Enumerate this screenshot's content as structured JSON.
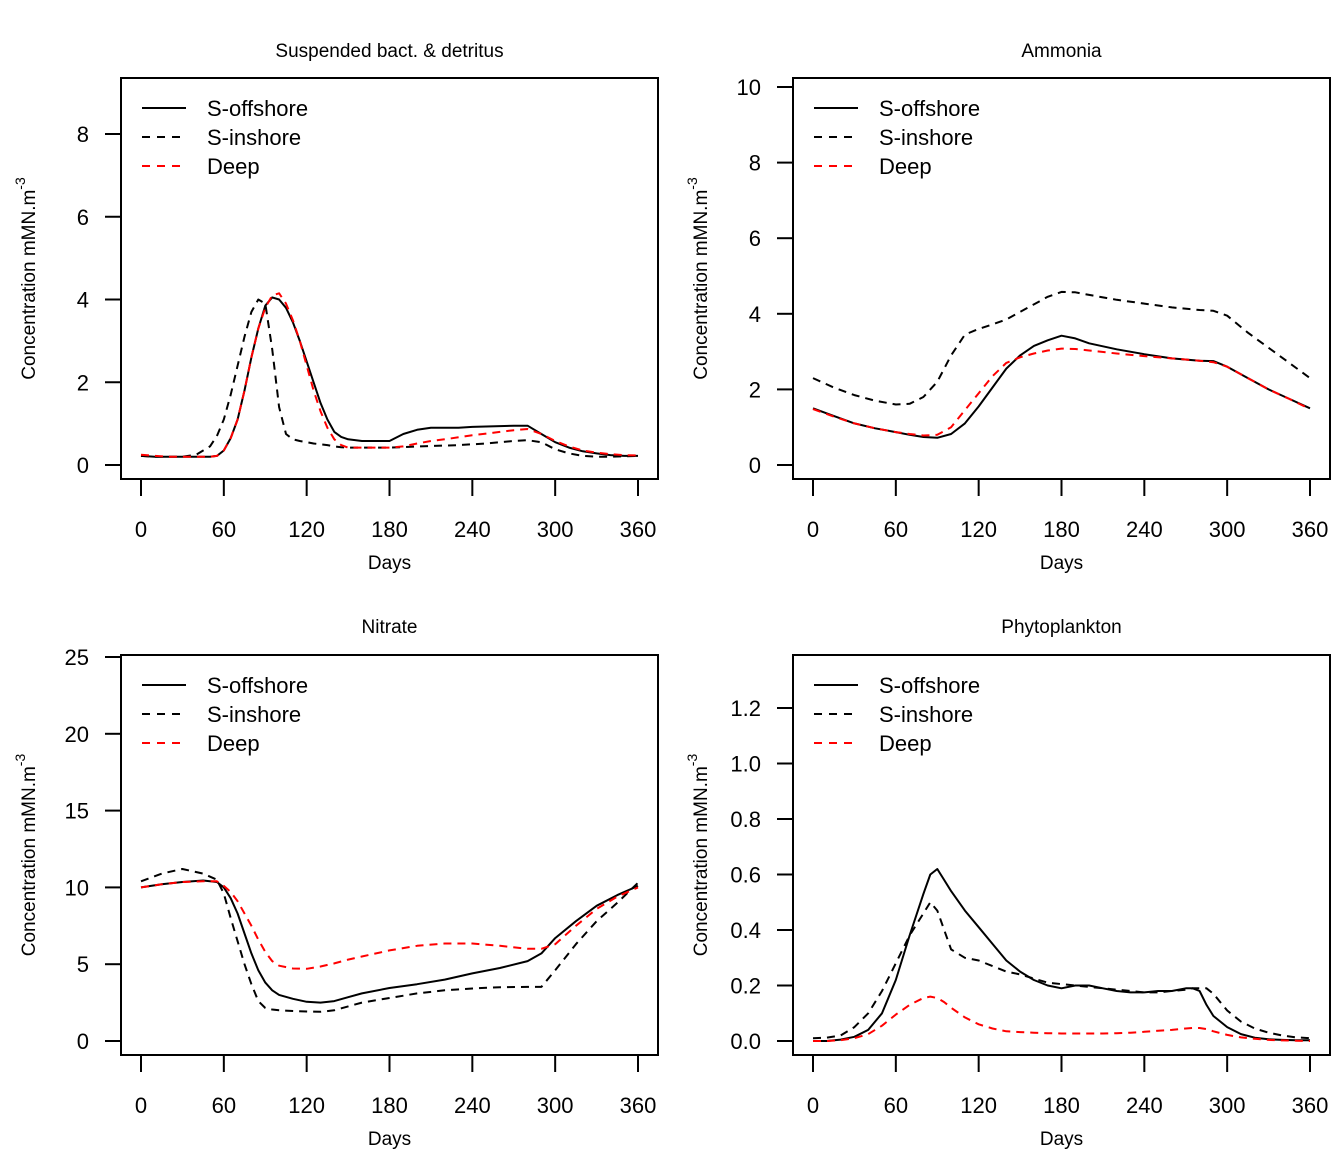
{
  "figure": {
    "legend_labels": [
      "S-offshore",
      "S-inshore",
      "Deep"
    ]
  },
  "chart_data": [
    {
      "type": "line",
      "title": "Suspended bact. & detritus",
      "xlabel": "Days",
      "ylabel": "Concentration mMN.m",
      "ylabel_superscript": "-3",
      "xlim": [
        0,
        360
      ],
      "ylim": [
        0,
        8
      ],
      "xticks": [
        0,
        60,
        120,
        180,
        240,
        300,
        360
      ],
      "yticks": [
        0,
        2,
        4,
        6,
        8
      ],
      "grid": false,
      "legend_position": "top-left",
      "x": [
        0,
        10,
        20,
        30,
        40,
        50,
        55,
        60,
        65,
        70,
        75,
        80,
        85,
        90,
        95,
        100,
        105,
        110,
        115,
        120,
        125,
        130,
        135,
        140,
        145,
        150,
        160,
        170,
        180,
        190,
        200,
        210,
        220,
        230,
        240,
        250,
        260,
        270,
        280,
        290,
        300,
        310,
        320,
        330,
        340,
        350,
        360
      ],
      "series": [
        {
          "name": "S-offshore",
          "color": "#000000",
          "dash": "solid",
          "values": [
            0.22,
            0.2,
            0.2,
            0.2,
            0.2,
            0.2,
            0.22,
            0.35,
            0.65,
            1.1,
            1.8,
            2.6,
            3.3,
            3.85,
            4.05,
            4.0,
            3.8,
            3.45,
            3.0,
            2.5,
            2.0,
            1.5,
            1.1,
            0.8,
            0.68,
            0.62,
            0.58,
            0.58,
            0.58,
            0.75,
            0.85,
            0.9,
            0.9,
            0.9,
            0.92,
            0.93,
            0.94,
            0.95,
            0.95,
            0.75,
            0.55,
            0.42,
            0.33,
            0.28,
            0.24,
            0.22,
            0.22
          ]
        },
        {
          "name": "S-inshore",
          "color": "#000000",
          "dash": "dashed",
          "values": [
            0.22,
            0.2,
            0.2,
            0.2,
            0.25,
            0.45,
            0.7,
            1.1,
            1.7,
            2.4,
            3.1,
            3.7,
            4.0,
            3.9,
            2.8,
            1.4,
            0.75,
            0.62,
            0.58,
            0.55,
            0.52,
            0.5,
            0.48,
            0.45,
            0.43,
            0.42,
            0.42,
            0.42,
            0.42,
            0.43,
            0.45,
            0.46,
            0.47,
            0.48,
            0.5,
            0.52,
            0.55,
            0.58,
            0.6,
            0.55,
            0.38,
            0.28,
            0.22,
            0.2,
            0.2,
            0.21,
            0.22
          ]
        },
        {
          "name": "Deep",
          "color": "#ff0000",
          "dash": "dashed",
          "values": [
            0.25,
            0.22,
            0.2,
            0.2,
            0.2,
            0.2,
            0.22,
            0.35,
            0.65,
            1.1,
            1.8,
            2.6,
            3.3,
            3.8,
            4.1,
            4.15,
            3.9,
            3.5,
            3.0,
            2.4,
            1.8,
            1.3,
            0.9,
            0.62,
            0.48,
            0.42,
            0.42,
            0.42,
            0.42,
            0.45,
            0.52,
            0.58,
            0.62,
            0.67,
            0.72,
            0.76,
            0.8,
            0.84,
            0.87,
            0.75,
            0.58,
            0.45,
            0.35,
            0.3,
            0.26,
            0.24,
            0.23
          ]
        }
      ]
    },
    {
      "type": "line",
      "title": "Ammonia",
      "xlabel": "Days",
      "ylabel": "Concentration mMN.m",
      "ylabel_superscript": "-3",
      "xlim": [
        0,
        360
      ],
      "ylim": [
        0,
        10
      ],
      "xticks": [
        0,
        60,
        120,
        180,
        240,
        300,
        360
      ],
      "yticks": [
        0,
        2,
        4,
        6,
        8,
        10
      ],
      "grid": false,
      "legend_position": "top-left",
      "x": [
        0,
        15,
        30,
        45,
        60,
        70,
        80,
        90,
        100,
        110,
        120,
        130,
        140,
        150,
        160,
        170,
        180,
        190,
        200,
        220,
        240,
        260,
        280,
        290,
        300,
        315,
        330,
        345,
        360
      ],
      "series": [
        {
          "name": "S-offshore",
          "color": "#000000",
          "dash": "solid",
          "values": [
            1.5,
            1.3,
            1.1,
            0.97,
            0.87,
            0.8,
            0.74,
            0.72,
            0.82,
            1.1,
            1.55,
            2.05,
            2.55,
            2.9,
            3.15,
            3.3,
            3.42,
            3.35,
            3.22,
            3.06,
            2.93,
            2.82,
            2.76,
            2.75,
            2.6,
            2.3,
            2.0,
            1.75,
            1.5
          ]
        },
        {
          "name": "S-inshore",
          "color": "#000000",
          "dash": "dashed",
          "values": [
            2.3,
            2.05,
            1.85,
            1.7,
            1.6,
            1.62,
            1.8,
            2.2,
            2.9,
            3.45,
            3.6,
            3.72,
            3.85,
            4.05,
            4.25,
            4.45,
            4.58,
            4.57,
            4.5,
            4.37,
            4.27,
            4.17,
            4.1,
            4.08,
            3.95,
            3.5,
            3.1,
            2.7,
            2.3
          ]
        },
        {
          "name": "Deep",
          "color": "#ff0000",
          "dash": "dashed",
          "values": [
            1.48,
            1.28,
            1.1,
            0.97,
            0.87,
            0.82,
            0.78,
            0.8,
            1.0,
            1.45,
            1.9,
            2.35,
            2.7,
            2.85,
            2.95,
            3.03,
            3.08,
            3.07,
            3.03,
            2.95,
            2.88,
            2.82,
            2.76,
            2.72,
            2.6,
            2.3,
            2.0,
            1.75,
            1.48
          ]
        }
      ]
    },
    {
      "type": "line",
      "title": "Nitrate",
      "xlabel": "Days",
      "ylabel": "Concentration mMN.m",
      "ylabel_superscript": "-3",
      "xlim": [
        0,
        360
      ],
      "ylim": [
        0,
        25
      ],
      "xticks": [
        0,
        60,
        120,
        180,
        240,
        300,
        360
      ],
      "yticks": [
        0,
        5,
        10,
        15,
        20,
        25
      ],
      "grid": false,
      "legend_position": "top-left",
      "x": [
        0,
        15,
        30,
        45,
        55,
        60,
        65,
        70,
        75,
        80,
        85,
        90,
        95,
        100,
        110,
        120,
        130,
        140,
        150,
        160,
        180,
        200,
        220,
        240,
        260,
        280,
        290,
        300,
        315,
        330,
        345,
        360
      ],
      "series": [
        {
          "name": "S-offshore",
          "color": "#000000",
          "dash": "solid",
          "values": [
            10.0,
            10.2,
            10.35,
            10.45,
            10.35,
            10.0,
            9.3,
            8.3,
            7.0,
            5.7,
            4.6,
            3.8,
            3.3,
            3.0,
            2.75,
            2.55,
            2.5,
            2.6,
            2.85,
            3.1,
            3.45,
            3.7,
            4.0,
            4.4,
            4.75,
            5.2,
            5.7,
            6.7,
            7.8,
            8.8,
            9.5,
            10.1
          ]
        },
        {
          "name": "S-inshore",
          "color": "#000000",
          "dash": "dashed",
          "values": [
            10.4,
            10.9,
            11.2,
            10.9,
            10.5,
            9.6,
            8.0,
            6.5,
            5.0,
            3.7,
            2.6,
            2.15,
            2.05,
            2.0,
            1.95,
            1.92,
            1.9,
            2.0,
            2.25,
            2.5,
            2.8,
            3.1,
            3.3,
            3.42,
            3.5,
            3.52,
            3.52,
            4.6,
            6.3,
            7.8,
            9.0,
            10.3
          ]
        },
        {
          "name": "Deep",
          "color": "#ff0000",
          "dash": "dashed",
          "values": [
            10.0,
            10.2,
            10.35,
            10.4,
            10.4,
            10.1,
            9.7,
            9.1,
            8.3,
            7.5,
            6.6,
            5.8,
            5.2,
            4.9,
            4.72,
            4.7,
            4.85,
            5.05,
            5.3,
            5.5,
            5.9,
            6.2,
            6.35,
            6.35,
            6.2,
            6.0,
            6.0,
            6.3,
            7.5,
            8.6,
            9.4,
            10.0
          ]
        }
      ]
    },
    {
      "type": "line",
      "title": "Phytoplankton",
      "xlabel": "Days",
      "ylabel": "Concentration mMN.m",
      "ylabel_superscript": "-3",
      "xlim": [
        0,
        360
      ],
      "ylim": [
        0,
        1.3
      ],
      "xticks": [
        0,
        60,
        120,
        180,
        240,
        300,
        360
      ],
      "yticks": [
        0.0,
        0.2,
        0.4,
        0.6,
        0.8,
        1.0,
        1.2
      ],
      "ytick_decimals": 1,
      "grid": false,
      "legend_position": "top-left",
      "x": [
        0,
        10,
        20,
        30,
        40,
        50,
        60,
        70,
        80,
        85,
        90,
        95,
        100,
        110,
        120,
        130,
        140,
        150,
        160,
        170,
        180,
        190,
        200,
        210,
        220,
        230,
        240,
        250,
        260,
        270,
        275,
        280,
        285,
        290,
        300,
        310,
        320,
        330,
        340,
        350,
        360
      ],
      "series": [
        {
          "name": "S-offshore",
          "color": "#000000",
          "dash": "solid",
          "values": [
            0.0,
            0.0,
            0.005,
            0.015,
            0.04,
            0.1,
            0.22,
            0.38,
            0.53,
            0.6,
            0.62,
            0.58,
            0.54,
            0.47,
            0.41,
            0.35,
            0.29,
            0.25,
            0.22,
            0.2,
            0.19,
            0.2,
            0.2,
            0.19,
            0.18,
            0.175,
            0.175,
            0.18,
            0.18,
            0.19,
            0.19,
            0.18,
            0.13,
            0.09,
            0.05,
            0.025,
            0.012,
            0.006,
            0.004,
            0.003,
            0.003
          ]
        },
        {
          "name": "S-inshore",
          "color": "#000000",
          "dash": "dashed",
          "values": [
            0.01,
            0.012,
            0.02,
            0.05,
            0.1,
            0.18,
            0.28,
            0.38,
            0.46,
            0.5,
            0.47,
            0.4,
            0.33,
            0.3,
            0.29,
            0.27,
            0.25,
            0.24,
            0.225,
            0.21,
            0.205,
            0.2,
            0.195,
            0.19,
            0.185,
            0.18,
            0.175,
            0.175,
            0.18,
            0.185,
            0.19,
            0.19,
            0.19,
            0.17,
            0.11,
            0.07,
            0.045,
            0.03,
            0.02,
            0.013,
            0.01
          ]
        },
        {
          "name": "Deep",
          "color": "#ff0000",
          "dash": "dashed",
          "values": [
            0.0,
            0.0,
            0.003,
            0.01,
            0.025,
            0.055,
            0.095,
            0.13,
            0.155,
            0.16,
            0.155,
            0.14,
            0.12,
            0.085,
            0.06,
            0.045,
            0.035,
            0.032,
            0.03,
            0.028,
            0.027,
            0.027,
            0.027,
            0.027,
            0.028,
            0.03,
            0.033,
            0.037,
            0.04,
            0.045,
            0.047,
            0.047,
            0.043,
            0.035,
            0.022,
            0.013,
            0.008,
            0.004,
            0.002,
            0.001,
            0.0
          ]
        }
      ]
    }
  ]
}
